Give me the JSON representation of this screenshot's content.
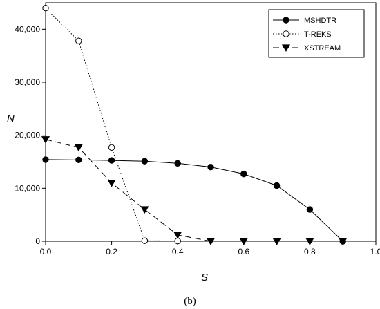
{
  "chart_data": {
    "type": "line",
    "xlabel": "S",
    "ylabel": "N",
    "xlim": [
      0.0,
      1.0
    ],
    "ylim": [
      0,
      45000
    ],
    "x_ticks": [
      "0.0",
      "0.2",
      "0.4",
      "0.6",
      "0.8",
      "1.0"
    ],
    "x_tick_values": [
      0.0,
      0.2,
      0.4,
      0.6,
      0.8,
      1.0
    ],
    "y_ticks": [
      "0",
      "10,000",
      "20,000",
      "30,000",
      "40,000"
    ],
    "y_tick_values": [
      0,
      10000,
      20000,
      30000,
      40000
    ],
    "legend_position": "top-right",
    "grid": false,
    "series": [
      {
        "name": "MSHDTR",
        "line_style": "solid",
        "marker": "filled-circle",
        "color": "#000000",
        "x": [
          0.0,
          0.1,
          0.2,
          0.3,
          0.4,
          0.5,
          0.6,
          0.7,
          0.8,
          0.9
        ],
        "y": [
          15400,
          15350,
          15250,
          15100,
          14700,
          14000,
          12700,
          10500,
          6000,
          0
        ]
      },
      {
        "name": "T-REKS",
        "line_style": "dotted",
        "marker": "open-circle",
        "color": "#000000",
        "x": [
          0.0,
          0.1,
          0.2,
          0.3,
          0.4
        ],
        "y": [
          44000,
          37800,
          17700,
          100,
          50
        ]
      },
      {
        "name": "XSTREAM",
        "line_style": "dashed",
        "marker": "filled-triangle-down",
        "color": "#000000",
        "x": [
          0.0,
          0.1,
          0.2,
          0.3,
          0.4,
          0.5,
          0.6,
          0.7,
          0.8,
          0.9
        ],
        "y": [
          19200,
          17700,
          11000,
          6000,
          1200,
          0,
          0,
          0,
          0,
          0
        ]
      }
    ]
  },
  "caption": "(b)"
}
